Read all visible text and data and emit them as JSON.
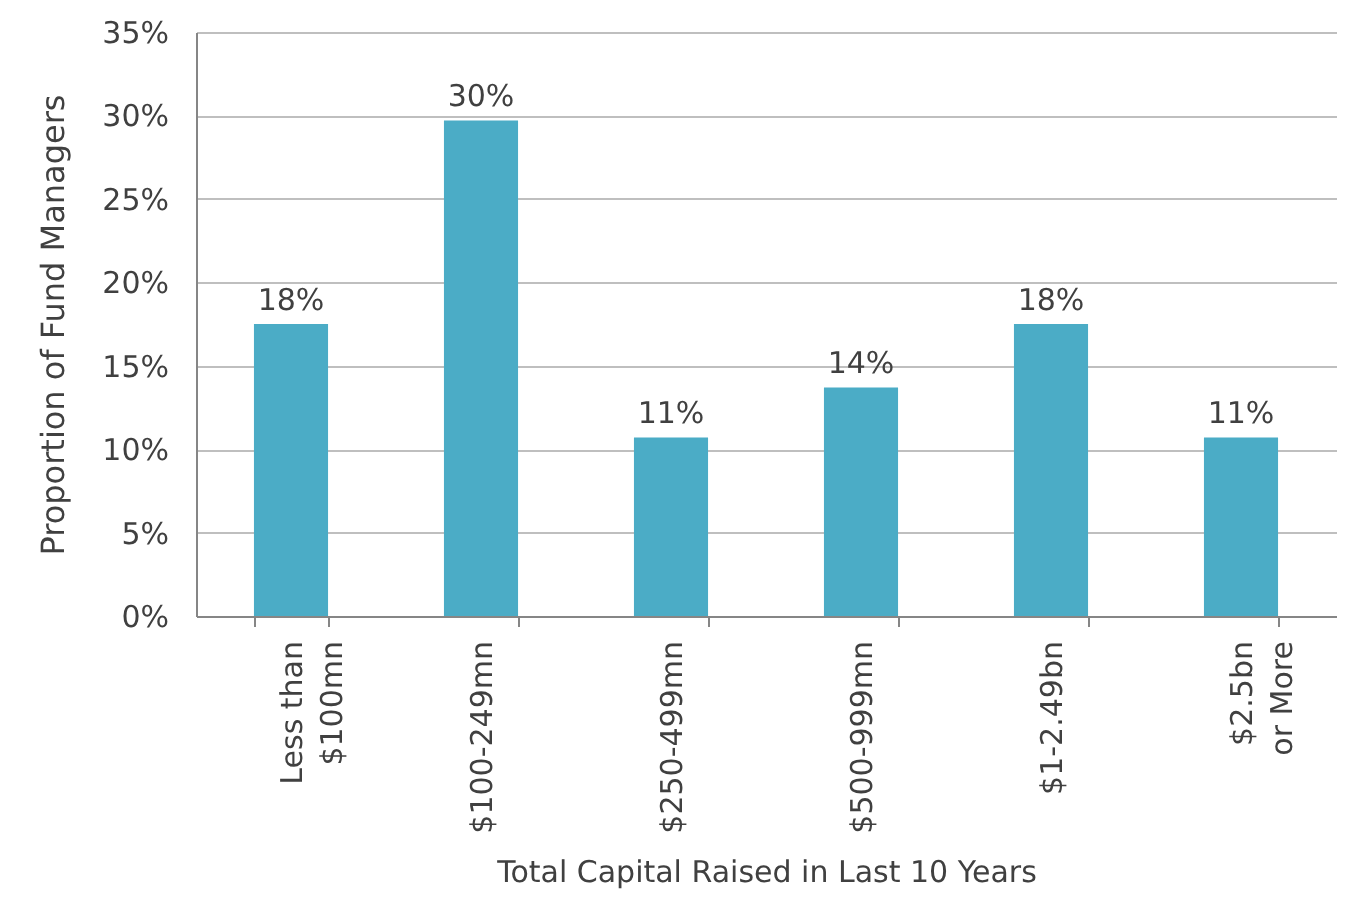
{
  "chart_data": {
    "type": "bar",
    "xlabel": "Total Capital Raised in Last 10 Years",
    "ylabel": "Proportion of Fund Managers",
    "categories": [
      "Less than $100mn",
      "$100-249mn",
      "$250-499mn",
      "$500-999mn",
      "$1-2.49bn",
      "$2.5bn or More"
    ],
    "values": [
      17.5,
      29.7,
      10.7,
      13.7,
      17.5,
      10.7
    ],
    "value_labels": [
      "18%",
      "30%",
      "11%",
      "14%",
      "18%",
      "11%"
    ],
    "color": "#4bacc6",
    "ylim": [
      0,
      35
    ],
    "yticks": [
      {
        "value": 0,
        "label": "0%"
      },
      {
        "value": 5,
        "label": "5%"
      },
      {
        "value": 10,
        "label": "10%"
      },
      {
        "value": 15,
        "label": "15%"
      },
      {
        "value": 20,
        "label": "20%"
      },
      {
        "value": 25,
        "label": "25%"
      },
      {
        "value": 30,
        "label": "30%"
      },
      {
        "value": 35,
        "label": "35%"
      }
    ],
    "grid": "y"
  }
}
